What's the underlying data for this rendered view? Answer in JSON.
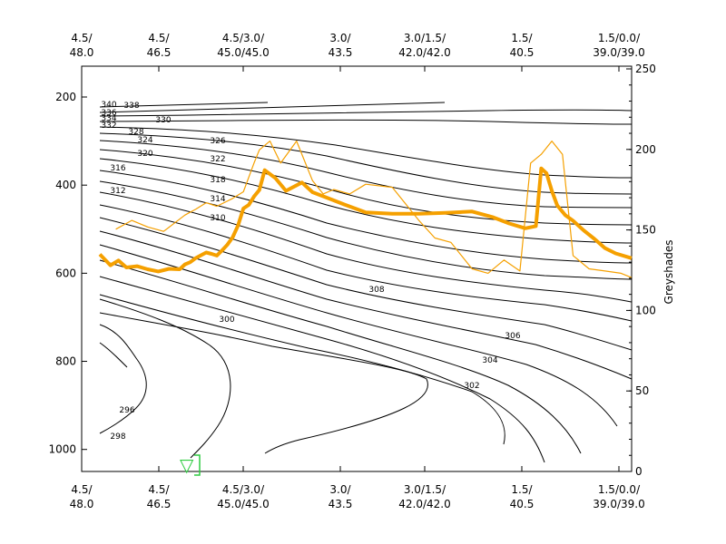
{
  "chart_data": {
    "type": "line",
    "title": "",
    "left_axis": {
      "ticks": [
        200,
        400,
        600,
        800,
        1000
      ],
      "range": [
        1050,
        130
      ],
      "inverted": true
    },
    "right_axis": {
      "label": "Greyshades",
      "ticks": [
        0,
        50,
        100,
        150,
        200,
        250
      ],
      "range": [
        0,
        250
      ]
    },
    "top_axis_ticks": [
      {
        "l1": "4.5/",
        "l2": "48.0"
      },
      {
        "l1": "4.5/",
        "l2": "46.5"
      },
      {
        "l1": "4.5/3.0/",
        "l2": "45.0/45.0"
      },
      {
        "l1": "3.0/",
        "l2": "43.5"
      },
      {
        "l1": "3.0/1.5/",
        "l2": "42.0/42.0"
      },
      {
        "l1": "1.5/",
        "l2": "40.5"
      },
      {
        "l1": "1.5/0.0/",
        "l2": "39.0/39.0"
      }
    ],
    "bottom_axis_ticks": [
      {
        "l1": "4.5/",
        "l2": "48.0"
      },
      {
        "l1": "4.5/",
        "l2": "46.5"
      },
      {
        "l1": "4.5/3.0/",
        "l2": "45.0/45.0"
      },
      {
        "l1": "3.0/",
        "l2": "43.5"
      },
      {
        "l1": "3.0/1.5/",
        "l2": "42.0/42.0"
      },
      {
        "l1": "1.5/",
        "l2": "40.5"
      },
      {
        "l1": "1.5/0.0/",
        "l2": "39.0/39.0"
      }
    ],
    "contour_labels": [
      "340",
      "338",
      "336",
      "334",
      "332",
      "330",
      "328",
      "326",
      "324",
      "322",
      "320",
      "318",
      "316",
      "314",
      "312",
      "310",
      "308",
      "306",
      "304",
      "302",
      "300",
      "298",
      "296"
    ],
    "marker": {
      "symbol": "▽",
      "color": "#2ecc40"
    },
    "series": [
      {
        "color": "#f5a000",
        "x": [
          0,
          0.02,
          0.035,
          0.05,
          0.07,
          0.09,
          0.11,
          0.13,
          0.15,
          0.16,
          0.17,
          0.18,
          0.2,
          0.21,
          0.22,
          0.23,
          0.24,
          0.25,
          0.26,
          0.27,
          0.28,
          0.29,
          0.3,
          0.31,
          0.33,
          0.35,
          0.38,
          0.4,
          0.43,
          0.46,
          0.5,
          0.55,
          0.6,
          0.65,
          0.7,
          0.74,
          0.77,
          0.8,
          0.82,
          0.83,
          0.84,
          0.85,
          0.86,
          0.875,
          0.89,
          0.91,
          0.93,
          0.95,
          0.97,
          1
        ],
        "y": [
          557,
          582,
          571,
          587,
          584,
          591,
          596,
          590,
          591,
          580,
          575,
          566,
          553,
          556,
          560,
          548,
          535,
          518,
          491,
          453,
          445,
          426,
          411,
          366,
          384,
          413,
          394,
          416,
          430,
          444,
          462,
          465,
          465,
          463,
          460,
          473,
          487,
          498,
          493,
          362,
          373,
          413,
          446,
          468,
          481,
          503,
          522,
          543,
          555,
          566
        ]
      },
      {
        "color": "#f5a000",
        "x": [
          0.03,
          0.06,
          0.09,
          0.12,
          0.16,
          0.18,
          0.2,
          0.22,
          0.25,
          0.27,
          0.29,
          0.3,
          0.32,
          0.34,
          0.37,
          0.4,
          0.42,
          0.44,
          0.47,
          0.5,
          0.55,
          0.6,
          0.63,
          0.66,
          0.7,
          0.73,
          0.76,
          0.79,
          0.81,
          0.83,
          0.85,
          0.87,
          0.89,
          0.92,
          0.95,
          0.98,
          1
        ],
        "y": [
          500,
          480,
          495,
          505,
          468,
          455,
          440,
          448,
          430,
          415,
          350,
          320,
          300,
          350,
          300,
          390,
          420,
          410,
          420,
          398,
          405,
          480,
          520,
          530,
          590,
          600,
          570,
          595,
          350,
          330,
          300,
          330,
          560,
          590,
          595,
          600,
          610
        ]
      }
    ]
  }
}
